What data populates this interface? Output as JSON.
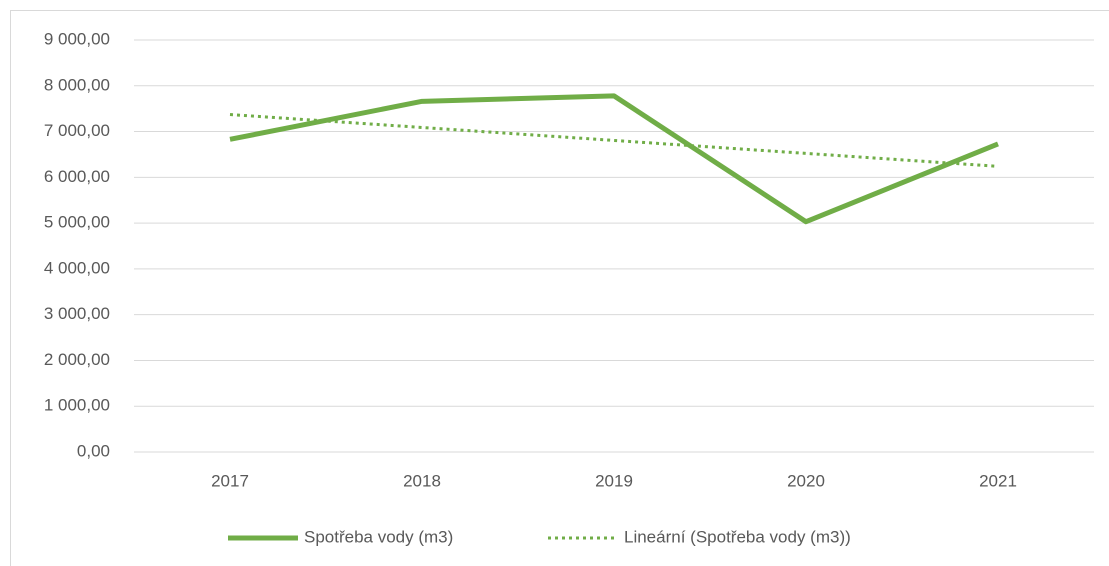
{
  "chart_data": {
    "type": "line",
    "categories": [
      "2017",
      "2018",
      "2019",
      "2020",
      "2021"
    ],
    "series": [
      {
        "name": "Spotřeba vody (m3)",
        "color": "#70ad47",
        "style": "solid",
        "values": [
          6830,
          7660,
          7780,
          5030,
          6730
        ]
      },
      {
        "name": "Lineární (Spotřeba vody (m3))",
        "color": "#70ad47",
        "style": "dotted",
        "values": [
          7372,
          7089,
          6806,
          6523,
          6240
        ]
      }
    ],
    "ylim": [
      0,
      9000
    ],
    "yticks": [
      {
        "value": 0,
        "label": "0,00"
      },
      {
        "value": 1000,
        "label": "1 000,00"
      },
      {
        "value": 2000,
        "label": "2 000,00"
      },
      {
        "value": 3000,
        "label": "3 000,00"
      },
      {
        "value": 4000,
        "label": "4 000,00"
      },
      {
        "value": 5000,
        "label": "5 000,00"
      },
      {
        "value": 6000,
        "label": "6 000,00"
      },
      {
        "value": 7000,
        "label": "7 000,00"
      },
      {
        "value": 8000,
        "label": "8 000,00"
      },
      {
        "value": 9000,
        "label": "9 000,00"
      }
    ],
    "grid": true,
    "legend": "bottom"
  }
}
